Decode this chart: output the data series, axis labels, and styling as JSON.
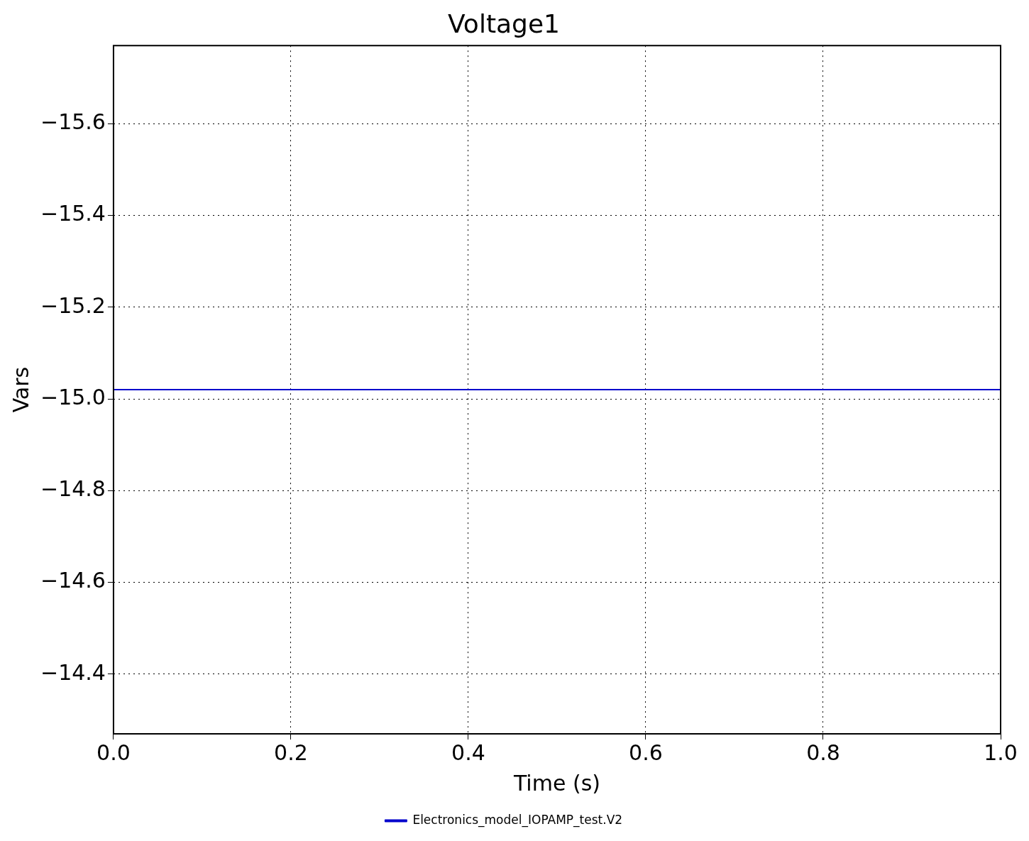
{
  "chart_data": {
    "type": "line",
    "title": "Voltage1",
    "xlabel": "Time (s)",
    "ylabel": "Vars",
    "x": [
      0,
      1
    ],
    "series": [
      {
        "name": "Electronics_model_IOPAMP_test.V2",
        "color": "#0000cc",
        "values": [
          -15.02,
          -15.02
        ]
      }
    ],
    "xlim": [
      0,
      1
    ],
    "xticks": [
      {
        "value": 0,
        "label": "0.0"
      },
      {
        "value": 0.2,
        "label": "0.2"
      },
      {
        "value": 0.4,
        "label": "0.4"
      },
      {
        "value": 0.6,
        "label": "0.6"
      },
      {
        "value": 0.8,
        "label": "0.8"
      },
      {
        "value": 1,
        "label": "1.0"
      }
    ],
    "ylim": [
      -14.27,
      -15.77
    ],
    "yticks": [
      {
        "value": -14.4,
        "label": "−14.4"
      },
      {
        "value": -14.6,
        "label": "−14.6"
      },
      {
        "value": -14.8,
        "label": "−14.8"
      },
      {
        "value": -15.0,
        "label": "−15.0"
      },
      {
        "value": -15.2,
        "label": "−15.2"
      },
      {
        "value": -15.4,
        "label": "−15.4"
      },
      {
        "value": -15.6,
        "label": "−15.6"
      }
    ],
    "grid": true,
    "legend": "bottom",
    "marker": "none",
    "line_style": "solid"
  }
}
